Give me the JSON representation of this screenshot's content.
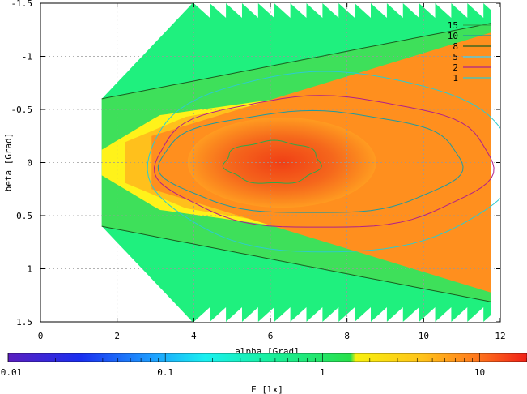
{
  "chart_data": {
    "type": "heatmap",
    "xlabel": "alpha [Grad]",
    "ylabel": "beta [Grad]",
    "colorbar_label": "E [lx]",
    "xlim": [
      0,
      12
    ],
    "ylim": [
      -1.5,
      1.5
    ],
    "y_axis_inverted": true,
    "x_ticks": [
      "0",
      "2",
      "4",
      "6",
      "8",
      "10",
      "12"
    ],
    "y_ticks": [
      "-1.5",
      "-1",
      "-0.5",
      "0",
      "0.5",
      "1",
      "1.5"
    ],
    "colorbar_scale": "log",
    "colorbar_range": [
      0.01,
      20
    ],
    "colorbar_ticks": [
      "0.01",
      "0.1",
      "1",
      "10"
    ],
    "grid": true,
    "legend_position": "top-right",
    "contour_levels": [
      {
        "label": "15",
        "value": 15,
        "color": "#2ea84a"
      },
      {
        "label": "10",
        "value": 10,
        "color": "#1f9aa0"
      },
      {
        "label": "8",
        "value": 8,
        "color": "#1b5e20"
      },
      {
        "label": "5",
        "value": 5,
        "color": "#3ad3ff"
      },
      {
        "label": "2",
        "value": 2,
        "color": "#b0208a"
      },
      {
        "label": "1",
        "value": 1,
        "color": "#2dcbd0"
      }
    ],
    "illuminated_region": {
      "x_start": 1.6,
      "x_end": 11.75,
      "beta_half_width_at_x_start": 0.6,
      "beta_half_width_saturated": 1.5
    },
    "max_illuminance_location": {
      "alpha": 6.2,
      "beta": 0.0
    }
  }
}
